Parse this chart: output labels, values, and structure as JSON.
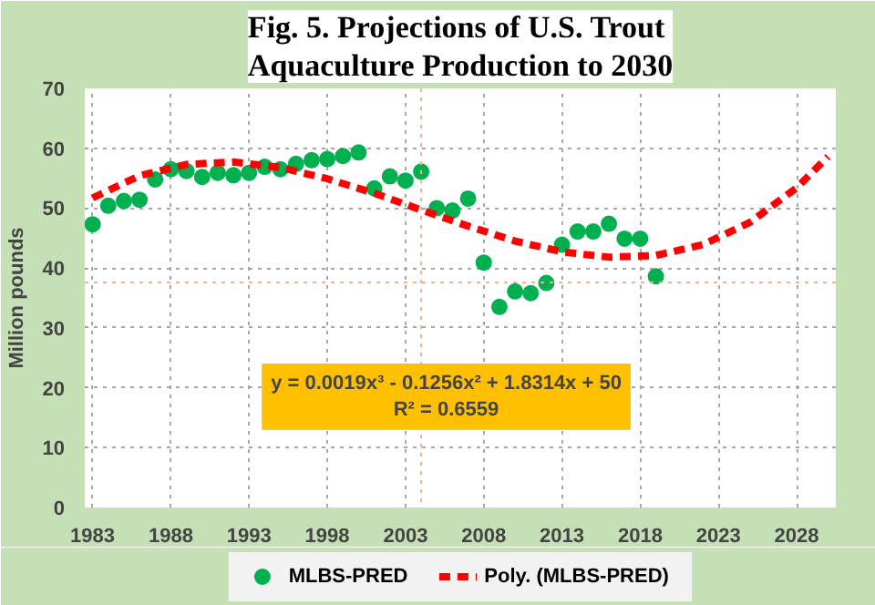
{
  "chart_data": {
    "type": "scatter",
    "title": "Fig. 5. Projections of U.S. Trout Aquaculture Production to 2030",
    "ylabel": "Million pounds",
    "xlim": [
      1982.5,
      2030.5
    ],
    "xticks": [
      1983,
      1988,
      1993,
      1998,
      2003,
      2008,
      2013,
      2018,
      2023,
      2028
    ],
    "ylim": [
      0,
      70
    ],
    "yticks": [
      0,
      10,
      20,
      30,
      40,
      50,
      60,
      70
    ],
    "grid": true,
    "legend": "bottom",
    "series": [
      {
        "name": "MLBS-PRED",
        "marker": "circle",
        "color": "#00b050",
        "x": [
          1983,
          1984,
          1985,
          1986,
          1987,
          1988,
          1989,
          1990,
          1991,
          1992,
          1993,
          1994,
          1995,
          1996,
          1997,
          1998,
          1999,
          2000,
          2001,
          2002,
          2003,
          2004,
          2005,
          2006,
          2007,
          2008,
          2009,
          2010,
          2011,
          2012,
          2013,
          2014,
          2015,
          2016,
          2017,
          2018,
          2019
        ],
        "values": [
          47.3,
          50.4,
          51.2,
          51.4,
          54.8,
          56.5,
          56.2,
          55.2,
          55.9,
          55.5,
          55.9,
          56.9,
          56.5,
          57.4,
          58.0,
          58.2,
          58.7,
          59.3,
          53.3,
          55.3,
          54.6,
          56.1,
          50.0,
          49.6,
          51.6,
          40.9,
          33.5,
          36.1,
          35.8,
          37.5,
          43.9,
          46.1,
          46.1,
          47.4,
          44.9,
          44.9,
          38.6
        ]
      },
      {
        "name": "Poly. (MLBS-PRED)",
        "type": "line",
        "line_style": "dashed",
        "color": "#ff0000",
        "x": [
          1983,
          1986,
          1989,
          1992,
          1995,
          1998,
          2001,
          2004,
          2007,
          2010,
          2013,
          2016,
          2019,
          2022,
          2025,
          2028,
          2030
        ],
        "values": [
          51.7,
          55.4,
          57.3,
          57.7,
          56.8,
          54.9,
          52.5,
          49.7,
          47.0,
          44.5,
          42.7,
          41.8,
          42.1,
          43.9,
          47.6,
          53.4,
          58.6
        ]
      }
    ],
    "ref_lines": [
      {
        "axis": "x",
        "value": 2004,
        "color": "#f4b183",
        "line_style": "dotted"
      },
      {
        "axis": "y",
        "value": 37.6,
        "color": "#f4b183",
        "line_style": "dotted"
      }
    ],
    "annotations": [
      "y = 0.0019x³ - 0.1256x² + 1.8314x + 50",
      "R² = 0.6559"
    ]
  }
}
